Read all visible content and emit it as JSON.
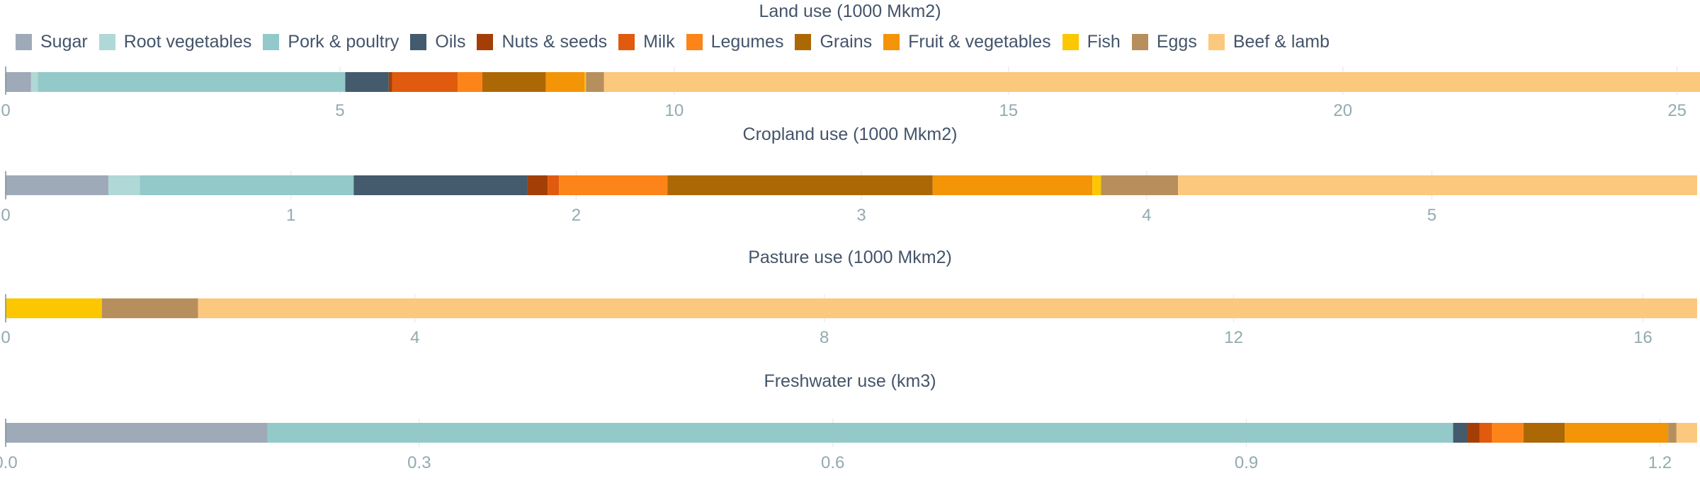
{
  "chart_data": [
    {
      "type": "bar",
      "orientation": "horizontal",
      "stacked": true,
      "title": "Land use (1000 Mkm2)",
      "categories": [
        "Sugar",
        "Root vegetables",
        "Pork & poultry",
        "Oils",
        "Nuts & seeds",
        "Milk",
        "Legumes",
        "Grains",
        "Fruit & vegetables",
        "Fish",
        "Eggs",
        "Beef & lamb"
      ],
      "values": [
        0.38,
        0.1,
        4.6,
        0.65,
        0.05,
        0.98,
        0.37,
        0.95,
        0.58,
        0.02,
        0.27,
        16.45
      ],
      "xlim": [
        0,
        25.3
      ],
      "ticks": [
        {
          "v": 0,
          "label": "0"
        },
        {
          "v": 5,
          "label": "5"
        },
        {
          "v": 10,
          "label": "10"
        },
        {
          "v": 15,
          "label": "15"
        },
        {
          "v": 20,
          "label": "20"
        },
        {
          "v": 25,
          "label": "25"
        }
      ],
      "grid": true
    },
    {
      "type": "bar",
      "orientation": "horizontal",
      "stacked": true,
      "title": "Cropland use (1000 Mkm2)",
      "categories": [
        "Sugar",
        "Root vegetables",
        "Pork & poultry",
        "Oils",
        "Nuts & seeds",
        "Milk",
        "Legumes",
        "Grains",
        "Fruit & vegetables",
        "Fish",
        "Eggs",
        "Beef & lamb"
      ],
      "values": [
        0.36,
        0.11,
        0.75,
        0.61,
        0.07,
        0.04,
        0.38,
        0.93,
        0.56,
        0.03,
        0.27,
        1.82
      ],
      "xlim": [
        0,
        5.93
      ],
      "ticks": [
        {
          "v": 0,
          "label": "0"
        },
        {
          "v": 1,
          "label": "1"
        },
        {
          "v": 2,
          "label": "2"
        },
        {
          "v": 3,
          "label": "3"
        },
        {
          "v": 4,
          "label": "4"
        },
        {
          "v": 5,
          "label": "5"
        }
      ],
      "grid": true
    },
    {
      "type": "bar",
      "orientation": "horizontal",
      "stacked": true,
      "title": "Pasture use (1000 Mkm2)",
      "categories": [
        "Fish",
        "Eggs",
        "Beef & lamb"
      ],
      "values": [
        0.94,
        0.94,
        14.65
      ],
      "xlim": [
        0,
        16.53
      ],
      "ticks": [
        {
          "v": 0,
          "label": "0"
        },
        {
          "v": 4,
          "label": "4"
        },
        {
          "v": 8,
          "label": "8"
        },
        {
          "v": 12,
          "label": "12"
        },
        {
          "v": 16,
          "label": "16"
        }
      ],
      "grid": true
    },
    {
      "type": "bar",
      "orientation": "horizontal",
      "stacked": true,
      "title": "Freshwater use (km3)",
      "categories": [
        "Sugar",
        "Pork & poultry",
        "Oils",
        "Nuts & seeds",
        "Milk",
        "Legumes",
        "Grains",
        "Fruit & vegetables",
        "Eggs",
        "Beef & lamb"
      ],
      "values": [
        0.19,
        0.86,
        0.01,
        0.009,
        0.009,
        0.023,
        0.03,
        0.075,
        0.006,
        0.015
      ],
      "xlim": [
        0,
        1.227
      ],
      "ticks": [
        {
          "v": 0,
          "label": "0.0"
        },
        {
          "v": 0.3,
          "label": "0.3"
        },
        {
          "v": 0.6,
          "label": "0.6"
        },
        {
          "v": 0.9,
          "label": "0.9"
        },
        {
          "v": 1.2,
          "label": "1.2"
        }
      ],
      "grid": true
    }
  ],
  "legend": {
    "items": [
      {
        "name": "Sugar",
        "color": "#9eaab8"
      },
      {
        "name": "Root vegetables",
        "color": "#b0d8d6"
      },
      {
        "name": "Pork & poultry",
        "color": "#93c9c9"
      },
      {
        "name": "Oils",
        "color": "#445a6d"
      },
      {
        "name": "Nuts & seeds",
        "color": "#a33f06"
      },
      {
        "name": "Milk",
        "color": "#e05b0e"
      },
      {
        "name": "Legumes",
        "color": "#fc8418"
      },
      {
        "name": "Grains",
        "color": "#ad6806"
      },
      {
        "name": "Fruit & vegetables",
        "color": "#f49407"
      },
      {
        "name": "Fish",
        "color": "#fcc700"
      },
      {
        "name": "Eggs",
        "color": "#b68f5d"
      },
      {
        "name": "Beef & lamb",
        "color": "#fbc87d"
      }
    ]
  },
  "colors": {
    "axis": "#7f8c96",
    "grid": "#e9eef0",
    "tick_text": "#93aab0",
    "text": "#44546a"
  }
}
